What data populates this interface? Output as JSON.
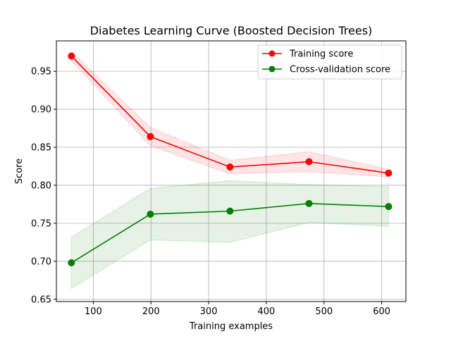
{
  "chart_data": {
    "type": "line",
    "title": "Diabetes Learning Curve (Boosted Decision Trees)",
    "xlabel": "Training examples",
    "ylabel": "Score",
    "xlim": [
      36,
      642
    ],
    "ylim": [
      0.647,
      0.99
    ],
    "xticks": [
      100,
      200,
      300,
      400,
      500,
      600
    ],
    "yticks": [
      0.65,
      0.7,
      0.75,
      0.8,
      0.85,
      0.9,
      0.95
    ],
    "ytick_labels": [
      "0.65",
      "0.70",
      "0.75",
      "0.80",
      "0.85",
      "0.90",
      "0.95"
    ],
    "grid": true,
    "legend_position": "top-right",
    "x": [
      62,
      199,
      337,
      474,
      612
    ],
    "series": [
      {
        "name": "Training score",
        "color": "#ff0000",
        "fill_color": "#ff0000",
        "values": [
          0.97,
          0.864,
          0.824,
          0.831,
          0.816
        ],
        "lower": [
          0.964,
          0.852,
          0.815,
          0.818,
          0.811
        ],
        "upper": [
          0.976,
          0.876,
          0.833,
          0.844,
          0.821
        ]
      },
      {
        "name": "Cross-validation score",
        "color": "#008000",
        "fill_color": "#008000",
        "values": [
          0.698,
          0.762,
          0.766,
          0.776,
          0.772
        ],
        "lower": [
          0.664,
          0.728,
          0.725,
          0.751,
          0.746
        ],
        "upper": [
          0.732,
          0.796,
          0.806,
          0.801,
          0.798
        ]
      }
    ]
  }
}
